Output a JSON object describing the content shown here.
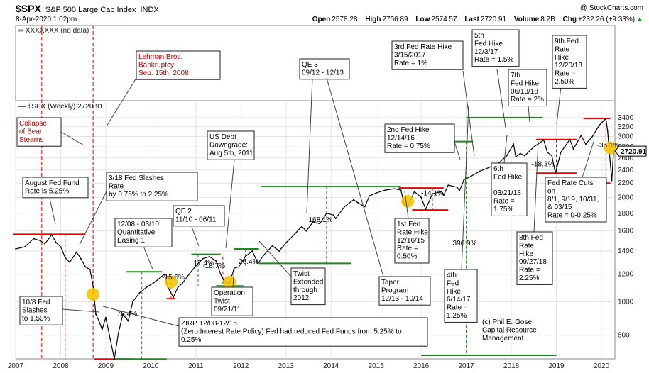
{
  "header": {
    "symbol": "$SPX",
    "name": "S&P 500 Large Cap Index",
    "exchange": "INDX",
    "datetime": "8-Apr-2020 1:02pm",
    "copyright": "@ StockCharts.com",
    "open_label": "Open",
    "open": "2578.28",
    "high_label": "High",
    "high": "2756.89",
    "low_label": "Low",
    "low": "2574.57",
    "last_label": "Last",
    "last": "2720.91",
    "volume_label": "Volume",
    "volume": "8.2B",
    "chg_label": "Chg",
    "chg": "+232.26 (+9.33%)",
    "chg_arrow": "▲"
  },
  "top_panel_label": "XXXXXXX (no data)",
  "chart_data": {
    "type": "line",
    "title": "$SPX (Weekly) 2720.91",
    "scale": "log",
    "ylim": [
      700,
      3700
    ],
    "xlim": [
      2007.0,
      2020.3
    ],
    "y_ticks": [
      800,
      1000,
      1200,
      1400,
      1600,
      1800,
      2000,
      2200,
      2400,
      2600,
      2800,
      3000,
      3200,
      3400
    ],
    "x_ticks": [
      "2007",
      "2008",
      "2009",
      "2010",
      "2011",
      "2012",
      "2013",
      "2014",
      "2015",
      "2016",
      "2017",
      "2018",
      "2019",
      "2020"
    ],
    "last_value_tag": "2720.91",
    "series": [
      {
        "name": "$SPX (Weekly)",
        "points": [
          [
            2007.0,
            1420
          ],
          [
            2007.2,
            1440
          ],
          [
            2007.4,
            1520
          ],
          [
            2007.55,
            1500
          ],
          [
            2007.65,
            1470
          ],
          [
            2007.8,
            1560
          ],
          [
            2007.9,
            1480
          ],
          [
            2008.0,
            1440
          ],
          [
            2008.1,
            1340
          ],
          [
            2008.2,
            1300
          ],
          [
            2008.35,
            1390
          ],
          [
            2008.45,
            1330
          ],
          [
            2008.55,
            1260
          ],
          [
            2008.65,
            1240
          ],
          [
            2008.72,
            1110
          ],
          [
            2008.78,
            920
          ],
          [
            2008.85,
            880
          ],
          [
            2008.92,
            830
          ],
          [
            2009.0,
            900
          ],
          [
            2009.1,
            780
          ],
          [
            2009.19,
            683
          ],
          [
            2009.28,
            810
          ],
          [
            2009.38,
            920
          ],
          [
            2009.5,
            880
          ],
          [
            2009.6,
            1000
          ],
          [
            2009.75,
            1060
          ],
          [
            2009.9,
            1100
          ],
          [
            2010.05,
            1130
          ],
          [
            2010.2,
            1170
          ],
          [
            2010.3,
            1200
          ],
          [
            2010.38,
            1100
          ],
          [
            2010.5,
            1030
          ],
          [
            2010.6,
            1100
          ],
          [
            2010.7,
            1130
          ],
          [
            2010.85,
            1200
          ],
          [
            2011.0,
            1270
          ],
          [
            2011.15,
            1330
          ],
          [
            2011.3,
            1350
          ],
          [
            2011.45,
            1310
          ],
          [
            2011.55,
            1200
          ],
          [
            2011.62,
            1150
          ],
          [
            2011.75,
            1130
          ],
          [
            2011.85,
            1250
          ],
          [
            2011.95,
            1260
          ],
          [
            2012.1,
            1350
          ],
          [
            2012.25,
            1400
          ],
          [
            2012.38,
            1290
          ],
          [
            2012.5,
            1360
          ],
          [
            2012.7,
            1450
          ],
          [
            2012.85,
            1400
          ],
          [
            2013.0,
            1480
          ],
          [
            2013.2,
            1570
          ],
          [
            2013.35,
            1650
          ],
          [
            2013.45,
            1600
          ],
          [
            2013.6,
            1700
          ],
          [
            2013.75,
            1680
          ],
          [
            2013.9,
            1800
          ],
          [
            2014.05,
            1780
          ],
          [
            2014.1,
            1740
          ],
          [
            2014.3,
            1880
          ],
          [
            2014.5,
            1970
          ],
          [
            2014.6,
            1930
          ],
          [
            2014.75,
            1880
          ],
          [
            2014.85,
            2020
          ],
          [
            2015.0,
            2060
          ],
          [
            2015.2,
            2100
          ],
          [
            2015.4,
            2120
          ],
          [
            2015.55,
            2100
          ],
          [
            2015.63,
            1900
          ],
          [
            2015.7,
            1880
          ],
          [
            2015.85,
            2080
          ],
          [
            2016.0,
            2000
          ],
          [
            2016.1,
            1850
          ],
          [
            2016.25,
            2050
          ],
          [
            2016.45,
            2080
          ],
          [
            2016.5,
            2030
          ],
          [
            2016.6,
            2170
          ],
          [
            2016.8,
            2140
          ],
          [
            2016.85,
            2090
          ],
          [
            2016.95,
            2250
          ],
          [
            2017.1,
            2300
          ],
          [
            2017.3,
            2380
          ],
          [
            2017.5,
            2440
          ],
          [
            2017.7,
            2500
          ],
          [
            2017.9,
            2640
          ],
          [
            2018.05,
            2850
          ],
          [
            2018.1,
            2620
          ],
          [
            2018.2,
            2680
          ],
          [
            2018.3,
            2640
          ],
          [
            2018.5,
            2800
          ],
          [
            2018.72,
            2930
          ],
          [
            2018.8,
            2700
          ],
          [
            2018.9,
            2640
          ],
          [
            2018.98,
            2350
          ],
          [
            2019.1,
            2700
          ],
          [
            2019.3,
            2940
          ],
          [
            2019.38,
            2760
          ],
          [
            2019.55,
            3020
          ],
          [
            2019.65,
            2850
          ],
          [
            2019.8,
            3000
          ],
          [
            2019.95,
            3230
          ],
          [
            2020.1,
            3380
          ],
          [
            2020.14,
            3100
          ],
          [
            2020.2,
            2480
          ],
          [
            2020.23,
            2237
          ],
          [
            2020.27,
            2720
          ]
        ]
      }
    ],
    "annotations": [
      {
        "id": "lehman",
        "color": "#c00000",
        "lines": [
          "Lehman Bros.",
          "Bankruptcy",
          "Sep. 15th, 2008"
        ]
      },
      {
        "id": "bear",
        "color": "#c00000",
        "lines": [
          "Collapse",
          "of Bear",
          "Stearns"
        ]
      },
      {
        "id": "aug_fed",
        "lines": [
          "August Fed Fund",
          "Rate is 5.25%"
        ]
      },
      {
        "id": "slash318",
        "lines": [
          "3/18 Fed Slashes",
          "Rate",
          "by 0.75% to 2.25%"
        ]
      },
      {
        "id": "qe1",
        "lines": [
          "12/08 - 03/10",
          "Quantitative",
          "Easing 1"
        ]
      },
      {
        "id": "qe2",
        "lines": [
          "QE 2",
          "11/10 - 06/11"
        ]
      },
      {
        "id": "downgrade",
        "lines": [
          "US Debt",
          "Downgrade:",
          "Aug 5th, 2011"
        ]
      },
      {
        "id": "qe3",
        "lines": [
          "QE 3",
          "09/12 - 12/13"
        ]
      },
      {
        "id": "twist",
        "lines": [
          "Operation",
          "Twist",
          "09/21/11"
        ]
      },
      {
        "id": "twist_ext",
        "lines": [
          "Twist",
          "Extended",
          "through",
          "2012"
        ]
      },
      {
        "id": "taper",
        "lines": [
          "Taper",
          "Program",
          "12/13 - 10/14"
        ]
      },
      {
        "id": "slash108",
        "lines": [
          "10/8 Fed",
          "Slashes",
          "to 1.50%"
        ]
      },
      {
        "id": "zirp",
        "lines": [
          "ZIRP 12/08-12/15",
          "(Zero Interest Rate Policy)  Fed had reduced Fed Funds from 5.25% to",
          "0.25%"
        ]
      },
      {
        "id": "hike3",
        "lines": [
          "3rd Fed Rate Hike",
          "3/15/2017",
          "Rate = 1%"
        ]
      },
      {
        "id": "hike2",
        "lines": [
          "2nd Fed Hike",
          "12/14/16",
          "Rate = 0.75%"
        ]
      },
      {
        "id": "hike1",
        "lines": [
          "1st Fed",
          "Rate Hike",
          "12/16/15",
          "Rate =",
          "0.50%"
        ]
      },
      {
        "id": "hike4",
        "lines": [
          "4th",
          "Fed",
          "Hike",
          "6/14/17",
          "Rate =",
          "1.25%"
        ]
      },
      {
        "id": "hike5",
        "lines": [
          "5th",
          "Fed Hike",
          "12/3/17",
          "Rate = 1.5%"
        ]
      },
      {
        "id": "hike6",
        "lines": [
          "6th",
          "Fed Hike",
          "",
          "03/21/18",
          "Rate =",
          "1.75%"
        ]
      },
      {
        "id": "hike7",
        "lines": [
          "7th",
          "Fed Hike",
          "06/13/18",
          "Rate = 2%"
        ]
      },
      {
        "id": "hike8",
        "lines": [
          "8th Fed",
          "Rate",
          "Hike",
          "09/27/18",
          "Rate =",
          "2.25%"
        ]
      },
      {
        "id": "hike9",
        "lines": [
          "9th Fed",
          "Rate",
          "Hike",
          "12/20/18",
          "Rate =",
          "2.50%"
        ]
      },
      {
        "id": "cuts",
        "lines": [
          "Fed Rate Cuts",
          "on",
          "8/1, 9/19, 10/31,",
          "& 03/15",
          "Rate = 0-0.25%"
        ]
      },
      {
        "id": "credit",
        "lines": [
          "(c) Phil E. Gose",
          "Capital Resource",
          "Management"
        ]
      }
    ],
    "move_labels": [
      "-56.3%",
      "78.4%",
      "-15.6%",
      "17.4%",
      "-18.7%",
      "26.4%",
      "168.1%",
      "-14.1%",
      "396.9%",
      "-18.3%",
      "-35.1%"
    ]
  }
}
